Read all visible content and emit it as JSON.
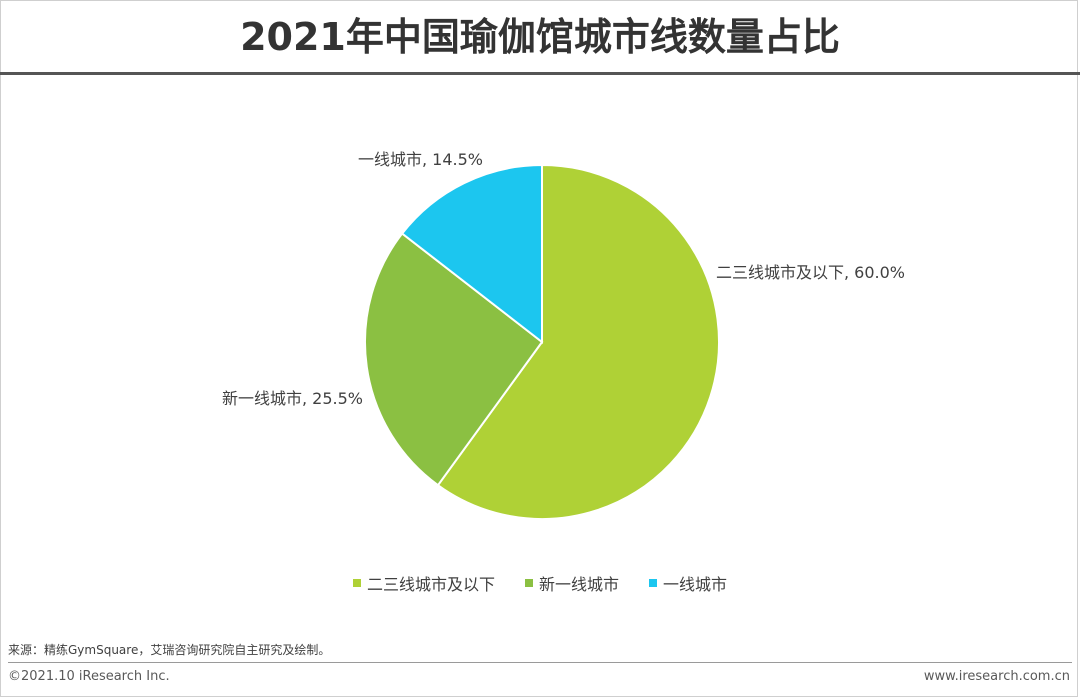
{
  "chart_data": {
    "type": "pie",
    "title": "2021年中国瑜伽馆城市线数量占比",
    "slices": [
      {
        "name": "二三线城市及以下",
        "value": 60.0,
        "label": "二三线城市及以下, 60.0%",
        "color": "#afd136"
      },
      {
        "name": "新一线城市",
        "value": 25.5,
        "label": "新一线城市, 25.5%",
        "color": "#8bc042"
      },
      {
        "name": "一线城市",
        "value": 14.5,
        "label": "一线城市, 14.5%",
        "color": "#1cc6ef"
      }
    ],
    "legend_position": "bottom"
  },
  "footer": {
    "source": "来源：精练GymSquare，艾瑞咨询研究院自主研究及绘制。",
    "copyright": "©2021.10 iResearch Inc.",
    "website": "www.iresearch.com.cn"
  }
}
